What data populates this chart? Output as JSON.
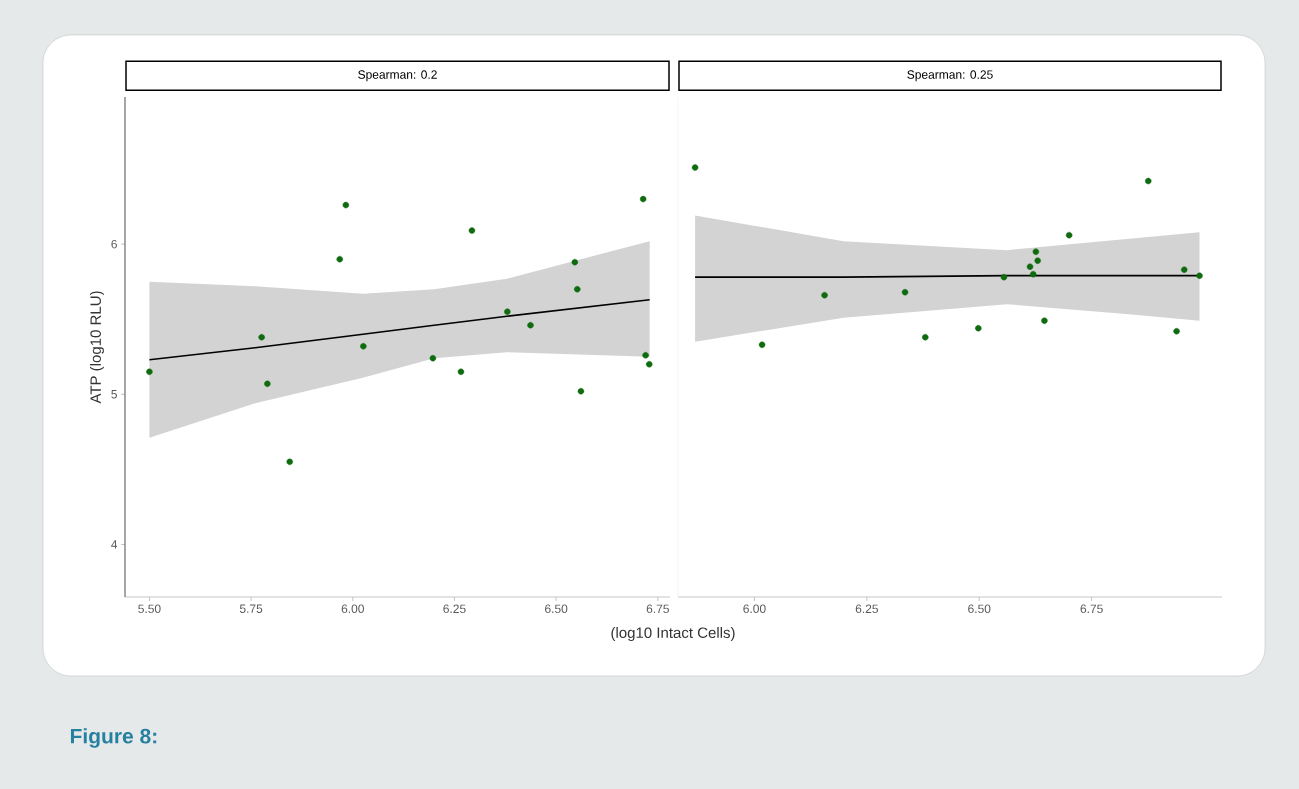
{
  "chart_data": [
    {
      "type": "scatter",
      "title": "Spearman: 0.2",
      "xlabel": "(log10 Intact Cells)",
      "ylabel": "ATP (log10 RLU)",
      "annotations": [
        "Figure 8:"
      ],
      "marker": "circle",
      "xlim": [
        5.44,
        6.78
      ],
      "ylim": [
        3.65,
        6.98
      ],
      "xticks": [
        {
          "value": 5.5,
          "label": "5.50"
        },
        {
          "value": 5.75,
          "label": "5.75"
        },
        {
          "value": 6.0,
          "label": "6.00"
        },
        {
          "value": 6.25,
          "label": "6.25"
        },
        {
          "value": 6.5,
          "label": "6.50"
        },
        {
          "value": 6.75,
          "label": "6.75"
        }
      ],
      "yticks": [
        4,
        5,
        6
      ],
      "series": [
        {
          "color": "#0e6b0e",
          "x": [
            5.5,
            5.776,
            5.79,
            5.845,
            5.968,
            5.983,
            6.026,
            6.197,
            6.266,
            6.293,
            6.38,
            6.437,
            6.546,
            6.552,
            6.561,
            6.714,
            6.72,
            6.729
          ],
          "values": [
            5.15,
            5.38,
            5.07,
            4.55,
            5.9,
            6.26,
            5.32,
            5.24,
            5.15,
            6.09,
            5.55,
            5.46,
            5.88,
            5.7,
            5.02,
            6.3,
            5.26,
            5.2
          ]
        },
        {
          "type": "line",
          "marker": "none",
          "color": "#000000",
          "x": [
            5.5,
            5.76,
            6.025,
            6.2,
            6.379,
            6.73
          ],
          "values": [
            5.23,
            5.31,
            5.4,
            5.46,
            5.52,
            5.63
          ],
          "lower": [
            4.71,
            4.94,
            5.11,
            5.24,
            5.28,
            5.25
          ],
          "upper": [
            5.75,
            5.72,
            5.67,
            5.7,
            5.77,
            6.02
          ]
        }
      ]
    },
    {
      "type": "scatter",
      "title": "Spearman: 0.25",
      "tick_labels": "x",
      "marker": "circle",
      "xlim": [
        5.83,
        7.04
      ],
      "ylim": [
        3.65,
        6.98
      ],
      "xticks": [
        {
          "value": 6.0,
          "label": "6.00"
        },
        {
          "value": 6.25,
          "label": "6.25"
        },
        {
          "value": 6.5,
          "label": "6.50"
        },
        {
          "value": 6.75,
          "label": "6.75"
        }
      ],
      "yticks": [
        4,
        5,
        6
      ],
      "series": [
        {
          "color": "#0e6b0e",
          "x": [
            5.868,
            6.017,
            6.156,
            6.335,
            6.38,
            6.498,
            6.555,
            6.613,
            6.62,
            6.626,
            6.63,
            6.645,
            6.7,
            6.876,
            6.939,
            6.956,
            6.99
          ],
          "values": [
            6.51,
            5.33,
            5.66,
            5.68,
            5.38,
            5.44,
            5.78,
            5.85,
            5.8,
            5.95,
            5.89,
            5.49,
            6.06,
            6.42,
            5.42,
            5.83,
            5.79
          ]
        },
        {
          "type": "line",
          "marker": "none",
          "color": "#000000",
          "x": [
            5.868,
            6.198,
            6.562,
            6.846,
            6.99
          ],
          "values": [
            5.78,
            5.78,
            5.79,
            5.79,
            5.79
          ],
          "lower": [
            5.35,
            5.51,
            5.6,
            5.53,
            5.49
          ],
          "upper": [
            6.19,
            6.02,
            5.96,
            6.04,
            6.08
          ]
        }
      ]
    }
  ]
}
